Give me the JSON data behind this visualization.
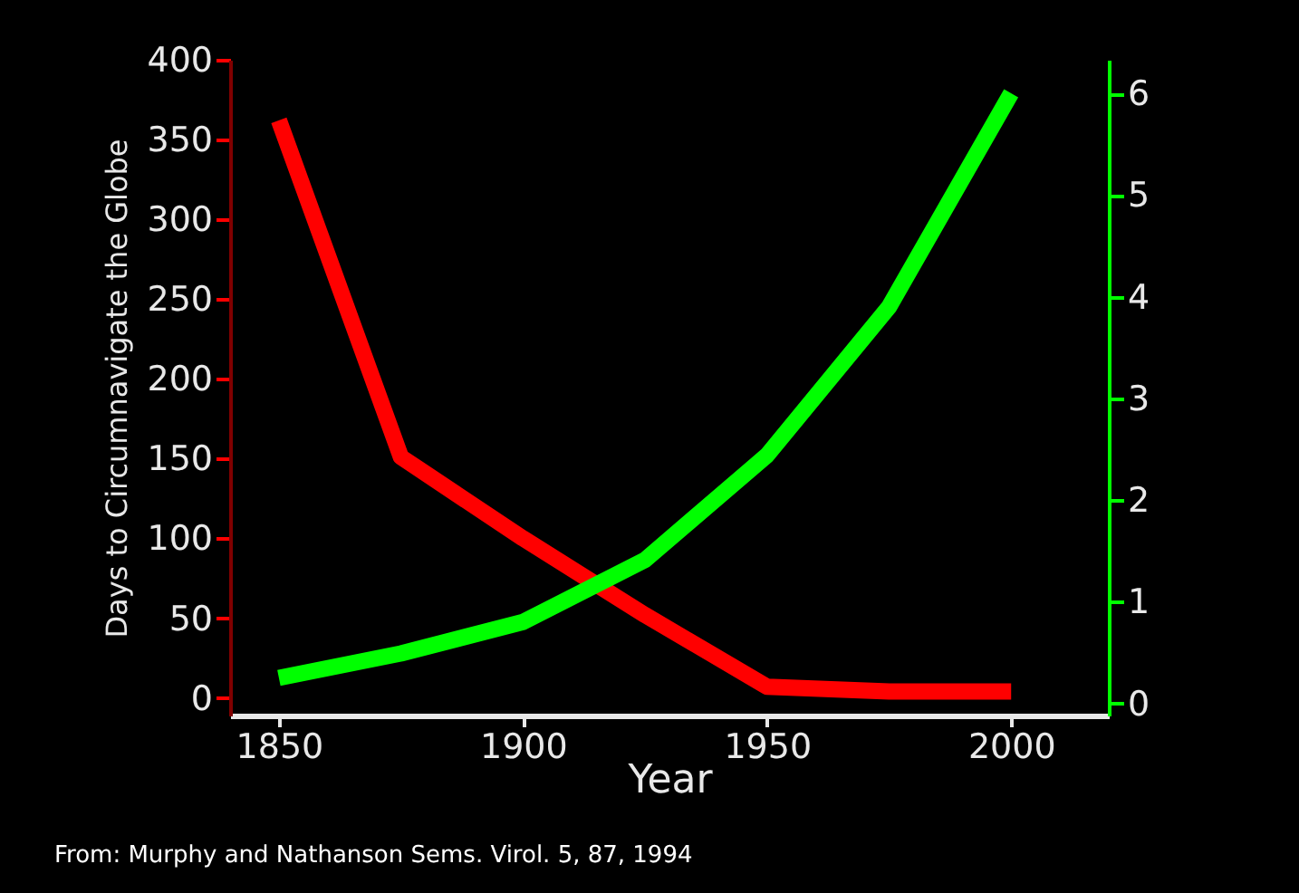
{
  "chart_data": {
    "type": "line",
    "xlabel": "Year",
    "ylabel": "Days to Circumnavigate the Globe",
    "x": [
      1850,
      1875,
      1900,
      1925,
      1950,
      1975,
      2000
    ],
    "series": [
      {
        "color": "#ff0000",
        "values": [
          362,
          151,
          100,
          52,
          7,
          4,
          4
        ]
      },
      {
        "color": "#00ff00",
        "axis": "y2",
        "values": [
          0.25,
          0.49,
          0.8,
          1.41,
          2.44,
          3.9,
          6.0
        ]
      }
    ],
    "xlim": [
      1840,
      2020
    ],
    "xticks": [
      1850,
      1900,
      1950,
      2000
    ],
    "ylim": [
      -11,
      400
    ],
    "yticks": [
      0,
      50,
      100,
      150,
      200,
      250,
      300,
      350,
      400
    ],
    "y2lim": [
      -0.12,
      6.33
    ],
    "y2ticks": [
      0,
      1,
      2,
      3,
      4,
      5,
      6
    ],
    "grid": false,
    "marker": "none",
    "line_style": "solid",
    "annotations": [
      "From: Murphy and Nathanson Sems. Virol. 5, 87, 1994"
    ]
  }
}
